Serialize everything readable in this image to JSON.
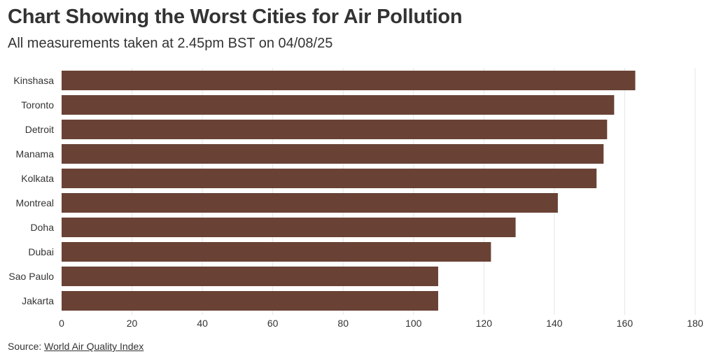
{
  "title": "Chart Showing the Worst Cities for Air Pollution",
  "subtitle": "All measurements taken at 2.45pm BST on 04/08/25",
  "source": {
    "prefix": "Source: ",
    "link_text": "World Air Quality Index"
  },
  "colors": {
    "bar": "#694235",
    "grid": "#e6e6e6",
    "text": "#333333"
  },
  "chart_data": {
    "type": "bar",
    "orientation": "horizontal",
    "categories": [
      "Kinshasa",
      "Toronto",
      "Detroit",
      "Manama",
      "Kolkata",
      "Montreal",
      "Doha",
      "Dubai",
      "Sao Paulo",
      "Jakarta"
    ],
    "values": [
      163,
      157,
      155,
      154,
      152,
      141,
      129,
      122,
      107,
      107
    ],
    "xlim": [
      0,
      180
    ],
    "xticks": [
      0,
      20,
      40,
      60,
      80,
      100,
      120,
      140,
      160,
      180
    ],
    "grid": true,
    "legend": "none"
  }
}
